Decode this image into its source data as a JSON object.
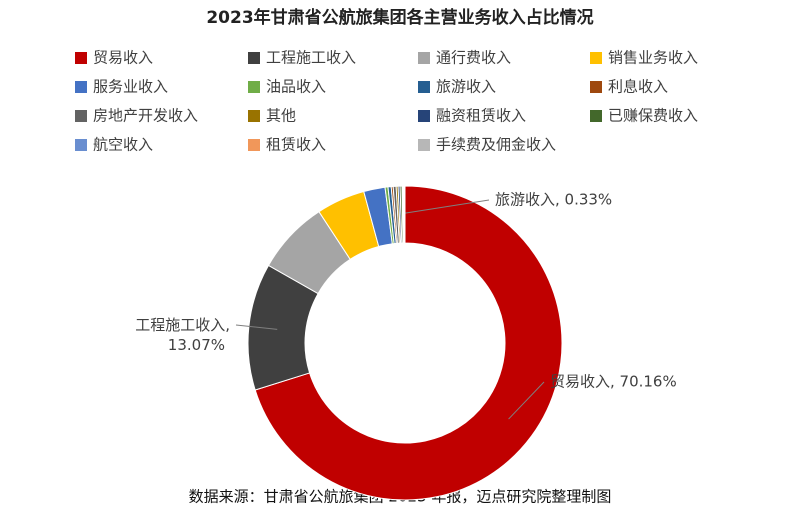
{
  "chart_data": {
    "type": "donut",
    "title": "2023年甘肃省公航旅集团各主营业务收入占比情况",
    "source": "数据来源：甘肃省公航旅集团 2023 年报，迈点研究院整理制图",
    "categories": [
      "贸易收入",
      "工程施工收入",
      "通行费收入",
      "销售业务收入",
      "服务业收入",
      "油品收入",
      "旅游收入",
      "利息收入",
      "房地产开发收入",
      "其他",
      "融资租赁收入",
      "已赚保费收入",
      "航空收入",
      "租赁收入",
      "手续费及佣金收入"
    ],
    "values": [
      70.16,
      13.07,
      7.54,
      5.0,
      2.2,
      0.3,
      0.33,
      0.2,
      0.3,
      0.2,
      0.2,
      0.2,
      0.1,
      0.1,
      0.1
    ],
    "value_labels": [
      "贸易收入, 70.16%",
      "工程施工收入, 13.07%",
      null,
      null,
      null,
      null,
      "旅游收入, 0.33%",
      null,
      null,
      null,
      null,
      null,
      null,
      null,
      null
    ],
    "colors": [
      "#c00000",
      "#404040",
      "#a5a5a5",
      "#ffc000",
      "#4472c4",
      "#70ad47",
      "#255e91",
      "#9e480e",
      "#636363",
      "#997300",
      "#264478",
      "#43682b",
      "#698ed0",
      "#f1975a",
      "#b7b7b7"
    ],
    "legend": "top"
  }
}
